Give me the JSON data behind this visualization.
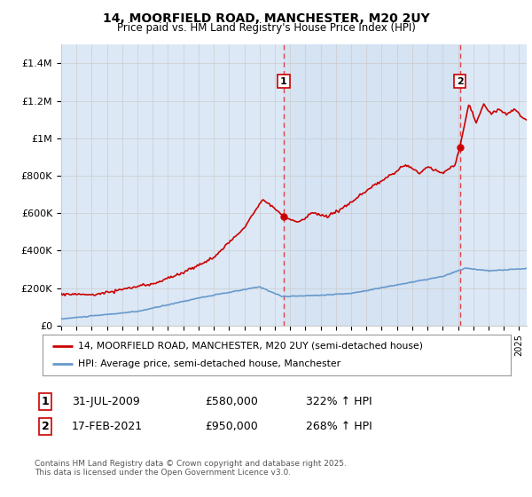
{
  "title": "14, MOORFIELD ROAD, MANCHESTER, M20 2UY",
  "subtitle": "Price paid vs. HM Land Registry's House Price Index (HPI)",
  "ylabel_ticks": [
    "£0",
    "£200K",
    "£400K",
    "£600K",
    "£800K",
    "£1M",
    "£1.2M",
    "£1.4M"
  ],
  "ytick_values": [
    0,
    200000,
    400000,
    600000,
    800000,
    1000000,
    1200000,
    1400000
  ],
  "ylim": [
    0,
    1500000
  ],
  "xlim_start": 1995.0,
  "xlim_end": 2025.5,
  "vline1_x": 2009.58,
  "vline2_x": 2021.12,
  "marker1_red_x": 2009.58,
  "marker1_red_y": 580000,
  "marker2_red_x": 2021.12,
  "marker2_red_y": 950000,
  "legend_label_red": "14, MOORFIELD ROAD, MANCHESTER, M20 2UY (semi-detached house)",
  "legend_label_blue": "HPI: Average price, semi-detached house, Manchester",
  "table_row1": [
    "1",
    "31-JUL-2009",
    "£580,000",
    "322% ↑ HPI"
  ],
  "table_row2": [
    "2",
    "17-FEB-2021",
    "£950,000",
    "268% ↑ HPI"
  ],
  "footer": "Contains HM Land Registry data © Crown copyright and database right 2025.\nThis data is licensed under the Open Government Licence v3.0.",
  "red_color": "#cc0000",
  "blue_color": "#6699cc",
  "vline_color": "#dd4444",
  "grid_color": "#cccccc",
  "bg_color": "#dce8f5",
  "white": "#ffffff"
}
